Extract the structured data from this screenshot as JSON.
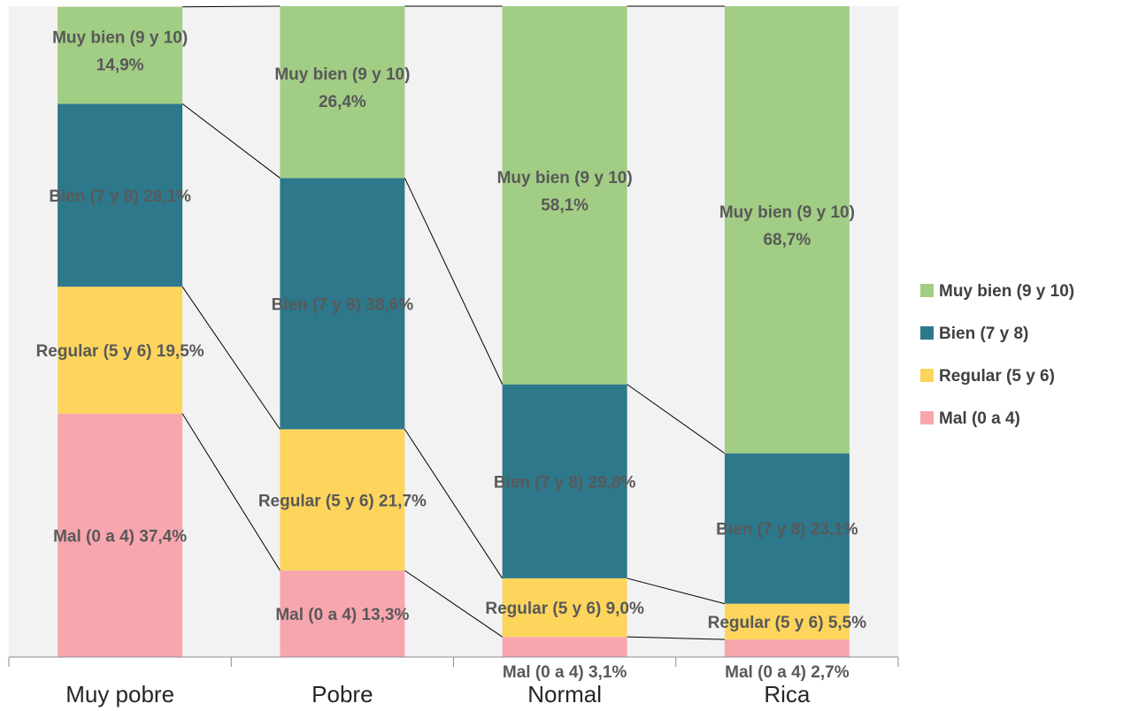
{
  "chart_data": {
    "type": "bar",
    "stacked": true,
    "normalized_percent": true,
    "categories": [
      "Muy pobre",
      "Pobre",
      "Normal",
      "Rica"
    ],
    "series": [
      {
        "name": "Mal (0 a 4)",
        "color": "#F8A6AE",
        "values": [
          37.4,
          13.3,
          3.1,
          2.7
        ],
        "labels": [
          "Mal (0 a 4) 37,4%",
          "Mal (0 a 4) 13,3%",
          "Mal (0 a 4) 3,1%",
          "Mal (0 a 4) 2,7%"
        ]
      },
      {
        "name": "Regular (5 y 6)",
        "color": "#FDD55D",
        "values": [
          19.5,
          21.7,
          9.0,
          5.5
        ],
        "labels": [
          "Regular (5 y 6) 19,5%",
          "Regular (5 y 6) 21,7%",
          "Regular (5 y 6) 9,0%",
          "Regular (5 y 6) 5,5%"
        ]
      },
      {
        "name": "Bien (7 y 8)",
        "color": "#2E788C",
        "values": [
          28.1,
          38.6,
          29.8,
          23.1
        ],
        "labels": [
          "Bien (7 y 8) 28,1%",
          "Bien (7 y 8) 38,6%",
          "Bien (7 y 8) 29,8%",
          "Bien (7 y 8) 23,1%"
        ]
      },
      {
        "name": "Muy bien (9 y 10)",
        "color": "#A2CD84",
        "values": [
          14.9,
          26.4,
          58.1,
          68.7
        ],
        "labels": [
          [
            "Muy bien (9 y 10)",
            "14,9%"
          ],
          [
            "Muy bien (9 y 10)",
            "26,4%"
          ],
          [
            "Muy bien (9 y 10)",
            "58,1%"
          ],
          [
            "Muy bien (9 y 10)",
            "68,7%"
          ]
        ]
      }
    ],
    "legend": {
      "placement": "right",
      "order": [
        "Muy bien (9 y 10)",
        "Bien (7 y 8)",
        "Regular (5 y 6)",
        "Mal (0 a 4)"
      ]
    },
    "ylim": [
      0,
      100
    ],
    "series_lines": true,
    "plot_background": "#F2F2F2",
    "title": "",
    "xlabel": "",
    "ylabel": ""
  }
}
